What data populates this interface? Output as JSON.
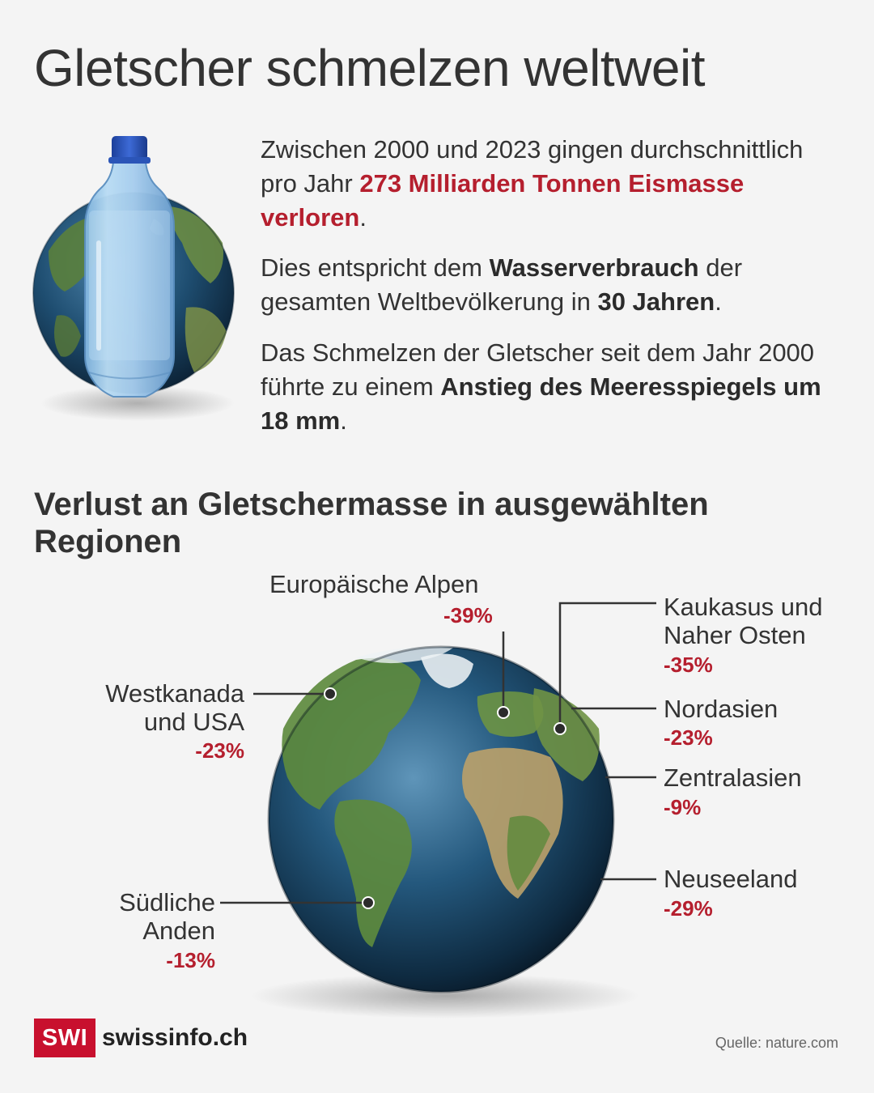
{
  "title": "Gletscher schmelzen weltweit",
  "intro": {
    "p1_a": "Zwischen 2000 und 2023 gingen durchschnittlich pro Jahr ",
    "p1_highlight": "273 Milliarden Tonnen Eismasse verloren",
    "p1_b": ".",
    "p2_a": "Dies entspricht dem ",
    "p2_bold1": "Wasserverbrauch",
    "p2_b": " der gesamten Weltbevölkerung in ",
    "p2_bold2": "30 Jahren",
    "p2_c": ".",
    "p3_a": "Das Schmelzen der Gletscher seit dem Jahr 2000 führte zu einem ",
    "p3_bold": "Anstieg des Meeresspiegels um 18 mm",
    "p3_b": "."
  },
  "section_title": "Verlust an Gletschermasse in ausgewählten Regionen",
  "regions": {
    "alps": {
      "name": "Europäische Alpen",
      "pct": "-39%"
    },
    "caucasus": {
      "name_l1": "Kaukasus und",
      "name_l2": "Naher Osten",
      "pct": "-35%"
    },
    "westcanada": {
      "name_l1": "Westkanada",
      "name_l2": "und USA",
      "pct": "-23%"
    },
    "northasia": {
      "name": "Nordasien",
      "pct": "-23%"
    },
    "centralasia": {
      "name": "Zentralasien",
      "pct": "-9%"
    },
    "newzealand": {
      "name": "Neuseeland",
      "pct": "-29%"
    },
    "andes": {
      "name_l1": "Südliche",
      "name_l2": "Anden",
      "pct": "-13%"
    }
  },
  "footer": {
    "logo": "SWI",
    "brand": "swissinfo.ch",
    "source": "Quelle: nature.com"
  },
  "colors": {
    "background": "#f4f4f4",
    "accent_red": "#b51f2e",
    "text": "#333333",
    "logo_red": "#c8102e"
  },
  "icons": [
    "water-bottle-icon",
    "globe-icon"
  ]
}
